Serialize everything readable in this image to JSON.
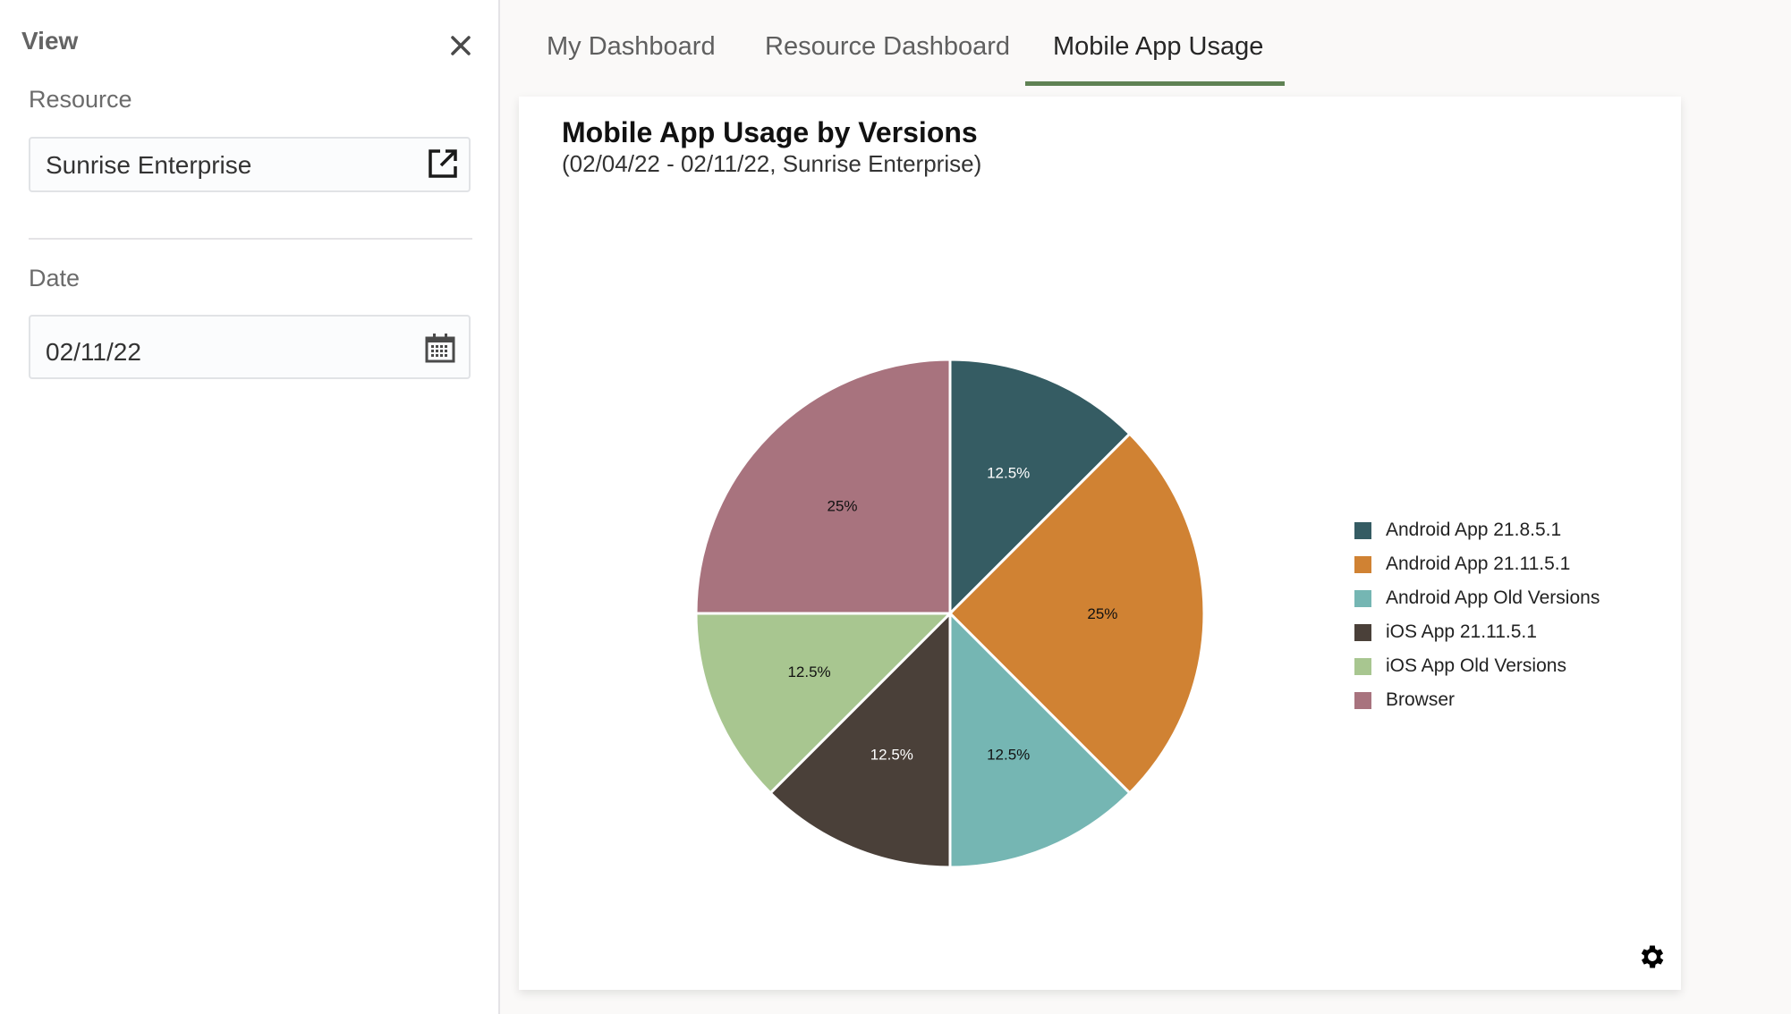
{
  "sidebar": {
    "title": "View",
    "close_icon": "close-icon",
    "resource": {
      "label": "Resource",
      "value": "Sunrise Enterprise",
      "icon": "open-in-new-icon"
    },
    "date": {
      "label": "Date",
      "value": "02/11/22",
      "icon": "calendar-icon"
    }
  },
  "tabs": [
    {
      "label": "My Dashboard",
      "active": false
    },
    {
      "label": "Resource Dashboard",
      "active": false
    },
    {
      "label": "Mobile App Usage",
      "active": true
    }
  ],
  "accent_color": "#5f8254",
  "card": {
    "title": "Mobile App Usage by Versions",
    "subtitle": "(02/04/22 - 02/11/22, Sunrise Enterprise)",
    "settings_icon": "gear-icon"
  },
  "chart_data": {
    "type": "pie",
    "title": "Mobile App Usage by Versions",
    "subtitle": "(02/04/22 - 02/11/22, Sunrise Enterprise)",
    "categories": [
      "Android App 21.8.5.1",
      "Android App 21.11.5.1",
      "Android App Old Versions",
      "iOS App 21.11.5.1",
      "iOS App Old Versions",
      "Browser"
    ],
    "values": [
      12.5,
      25,
      12.5,
      12.5,
      12.5,
      25
    ],
    "labels": [
      "12.5%",
      "25%",
      "12.5%",
      "12.5%",
      "12.5%",
      "25%"
    ],
    "colors": [
      "#355c63",
      "#d08233",
      "#75b6b3",
      "#4a4039",
      "#a8c690",
      "#a8737e"
    ],
    "label_colors": [
      "#ffffff",
      "#111111",
      "#111111",
      "#ffffff",
      "#111111",
      "#111111"
    ],
    "legend_position": "right",
    "start_angle": "12 o'clock, clockwise"
  }
}
